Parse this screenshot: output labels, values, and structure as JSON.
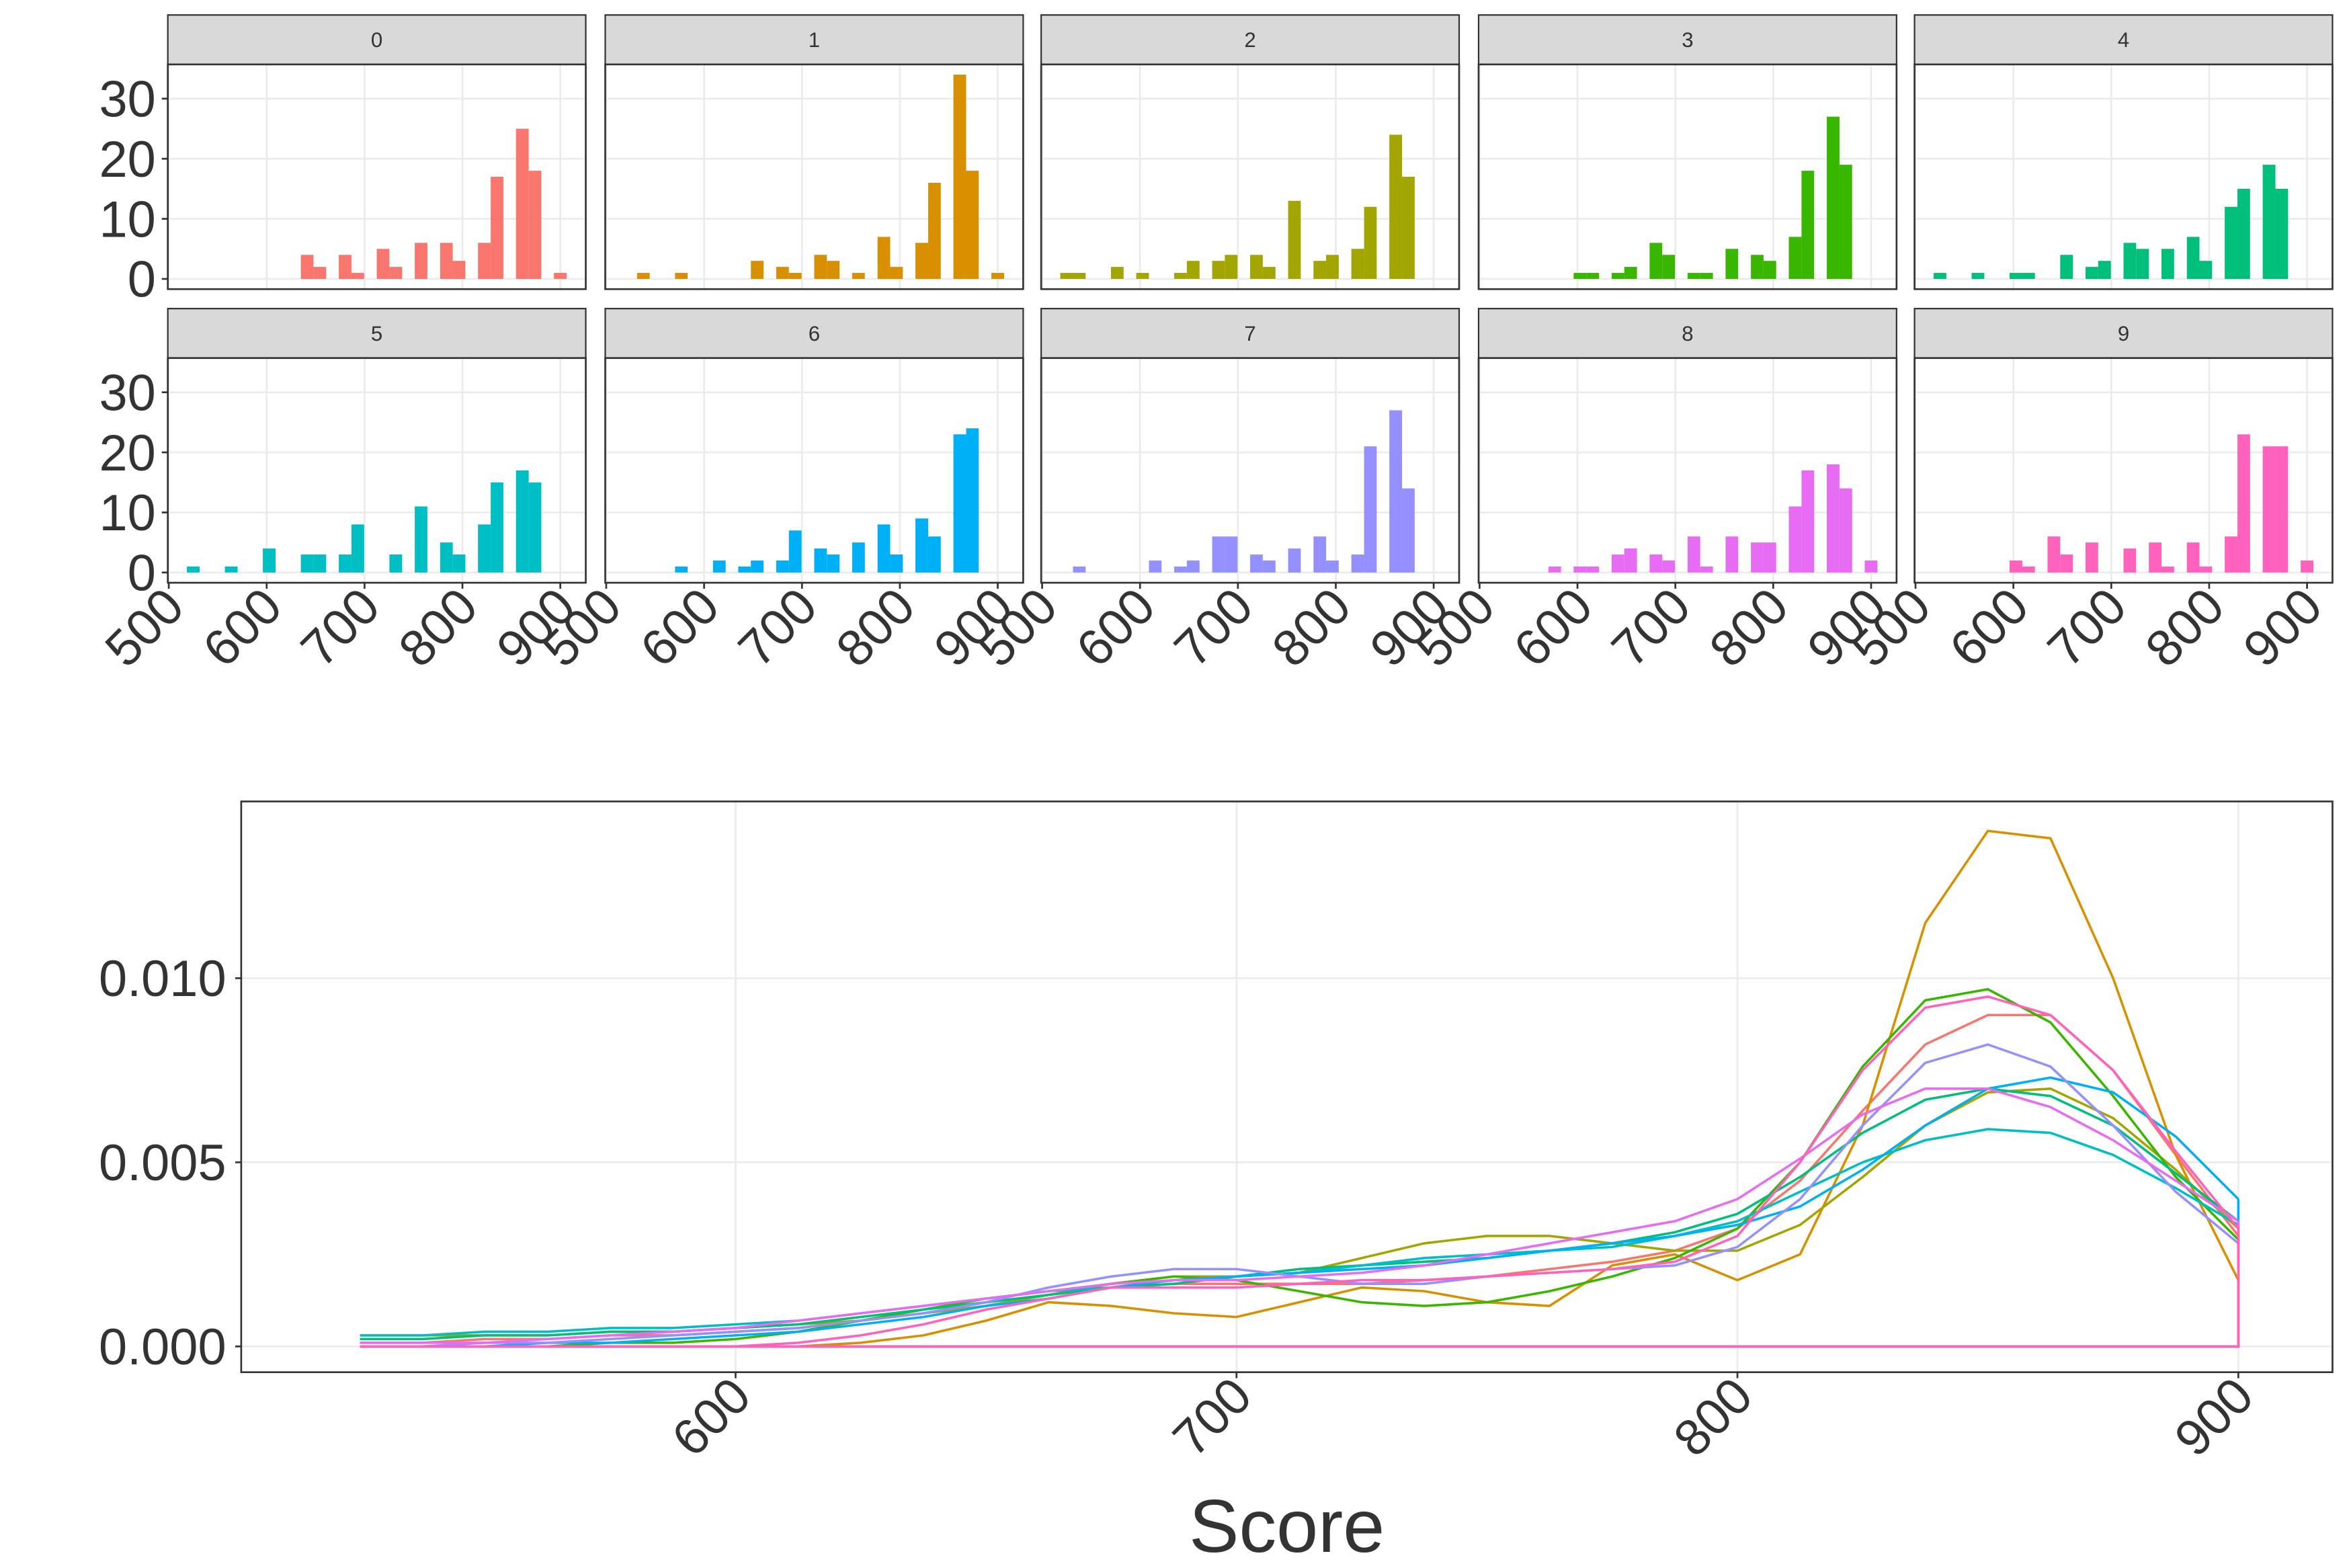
{
  "chart_data": [
    {
      "type": "histogram",
      "bins": [
        518.5,
        531.5,
        544.4,
        557.3,
        570.3,
        583.2,
        596.1,
        609.1,
        622.0,
        634.9,
        647.8,
        660.8,
        673.7,
        686.6,
        699.6,
        712.5,
        725.4,
        738.4,
        751.3,
        764.2,
        777.2,
        790.1,
        803.0,
        815.9,
        828.9,
        841.8,
        854.7,
        867.7,
        880.6,
        893.5,
        906.5
      ],
      "panels": [
        {
          "label": "0",
          "color": "#F8766D",
          "values": [
            0,
            0,
            0,
            0,
            0,
            0,
            0,
            0,
            0,
            4,
            2,
            0,
            4,
            1,
            0,
            5,
            2,
            0,
            6,
            0,
            6,
            3,
            0,
            6,
            17,
            0,
            25,
            18,
            0,
            1
          ]
        },
        {
          "label": "1",
          "color": "#D89000",
          "values": [
            0,
            1,
            0,
            0,
            1,
            0,
            0,
            0,
            0,
            0,
            3,
            0,
            2,
            1,
            0,
            4,
            3,
            0,
            1,
            0,
            7,
            2,
            0,
            6,
            16,
            0,
            34,
            18,
            0,
            1
          ]
        },
        {
          "label": "2",
          "color": "#A3A500",
          "values": [
            1,
            1,
            0,
            0,
            2,
            0,
            1,
            0,
            0,
            1,
            3,
            0,
            3,
            4,
            0,
            4,
            2,
            0,
            13,
            0,
            3,
            4,
            0,
            5,
            12,
            0,
            24,
            17,
            0,
            0
          ]
        },
        {
          "label": "3",
          "color": "#39B600",
          "values": [
            0,
            0,
            0,
            0,
            0,
            0,
            1,
            1,
            0,
            1,
            2,
            0,
            6,
            4,
            0,
            1,
            1,
            0,
            5,
            0,
            4,
            3,
            0,
            7,
            18,
            0,
            27,
            19,
            0,
            0
          ]
        },
        {
          "label": "4",
          "color": "#00BF7D",
          "values": [
            1,
            0,
            0,
            1,
            0,
            0,
            1,
            1,
            0,
            0,
            4,
            0,
            2,
            3,
            0,
            6,
            5,
            0,
            5,
            0,
            7,
            3,
            0,
            12,
            15,
            0,
            19,
            15,
            0,
            0
          ]
        },
        {
          "label": "5",
          "color": "#00BFC4",
          "values": [
            1,
            0,
            0,
            1,
            0,
            0,
            4,
            0,
            0,
            3,
            3,
            0,
            3,
            8,
            0,
            0,
            3,
            0,
            11,
            0,
            5,
            3,
            0,
            8,
            15,
            0,
            17,
            15,
            0,
            0
          ]
        },
        {
          "label": "6",
          "color": "#00B0F6",
          "values": [
            0,
            0,
            0,
            0,
            1,
            0,
            0,
            2,
            0,
            1,
            2,
            0,
            2,
            7,
            0,
            4,
            3,
            0,
            5,
            0,
            8,
            3,
            0,
            9,
            6,
            0,
            23,
            24,
            0,
            0
          ]
        },
        {
          "label": "7",
          "color": "#9590FF",
          "values": [
            0,
            1,
            0,
            0,
            0,
            0,
            0,
            2,
            0,
            1,
            2,
            0,
            6,
            6,
            0,
            3,
            2,
            0,
            4,
            0,
            6,
            2,
            0,
            3,
            21,
            0,
            27,
            14,
            0,
            0
          ]
        },
        {
          "label": "8",
          "color": "#E76BF3",
          "values": [
            0,
            0,
            0,
            0,
            1,
            0,
            1,
            1,
            0,
            3,
            4,
            0,
            3,
            2,
            0,
            6,
            1,
            0,
            6,
            0,
            5,
            5,
            0,
            11,
            17,
            0,
            18,
            14,
            0,
            2
          ]
        },
        {
          "label": "9",
          "color": "#FF62BC",
          "values": [
            0,
            0,
            0,
            0,
            0,
            0,
            2,
            1,
            0,
            6,
            3,
            0,
            5,
            0,
            0,
            4,
            0,
            5,
            1,
            0,
            5,
            1,
            0,
            6,
            23,
            0,
            21,
            21,
            0,
            2
          ]
        }
      ],
      "xlim": [
        499,
        926
      ],
      "ylim": [
        -1.7,
        35.7
      ],
      "xticks": [
        500,
        600,
        700,
        800,
        900
      ],
      "yticks": [
        0,
        10,
        20,
        30
      ],
      "grid": true
    },
    {
      "type": "density",
      "x": [
        525,
        537.5,
        550,
        562.5,
        575,
        587.5,
        600,
        612.5,
        625,
        637.5,
        650,
        662.5,
        675,
        687.5,
        700,
        712.5,
        725,
        737.5,
        750,
        762.5,
        775,
        787.5,
        800,
        812.5,
        825,
        837.5,
        850,
        862.5,
        875,
        887.5,
        900
      ],
      "series": [
        {
          "color": "#F8766D",
          "values": [
            0.0001,
            0.0001,
            0.0002,
            0.0002,
            0.0003,
            0.0003,
            0.0004,
            0.0005,
            0.0007,
            0.0009,
            0.0012,
            0.0014,
            0.0016,
            0.0017,
            0.0017,
            0.0017,
            0.0017,
            0.0018,
            0.0019,
            0.0021,
            0.0023,
            0.0026,
            0.0032,
            0.0045,
            0.0064,
            0.0082,
            0.009,
            0.009,
            0.0075,
            0.0052,
            0.003
          ]
        },
        {
          "color": "#D89000",
          "values": [
            0,
            0,
            0,
            0,
            0,
            0,
            0,
            0,
            0.0001,
            0.0003,
            0.0007,
            0.0012,
            0.0011,
            0.0009,
            0.0008,
            0.0012,
            0.0016,
            0.0015,
            0.0012,
            0.0011,
            0.0022,
            0.0025,
            0.0018,
            0.0025,
            0.006,
            0.0115,
            0.014,
            0.0138,
            0.01,
            0.0052,
            0.0018
          ]
        },
        {
          "color": "#A3A500",
          "values": [
            0.0003,
            0.0003,
            0.0003,
            0.0003,
            0.0004,
            0.0004,
            0.0005,
            0.0006,
            0.0007,
            0.0009,
            0.0011,
            0.0014,
            0.0017,
            0.0019,
            0.0019,
            0.002,
            0.0024,
            0.0028,
            0.003,
            0.003,
            0.0028,
            0.0026,
            0.0026,
            0.0033,
            0.0046,
            0.006,
            0.0069,
            0.007,
            0.0062,
            0.0048,
            0.0032
          ]
        },
        {
          "color": "#39B600",
          "values": [
            0,
            0,
            0,
            0,
            0.0001,
            0.0001,
            0.0002,
            0.0004,
            0.0007,
            0.001,
            0.0013,
            0.0015,
            0.0017,
            0.0019,
            0.0018,
            0.0015,
            0.0012,
            0.0011,
            0.0012,
            0.0015,
            0.0019,
            0.0024,
            0.0032,
            0.005,
            0.0076,
            0.0094,
            0.0097,
            0.0088,
            0.0068,
            0.0046,
            0.0029
          ]
        },
        {
          "color": "#00BF7D",
          "values": [
            0.0002,
            0.0002,
            0.0003,
            0.0003,
            0.0004,
            0.0004,
            0.0005,
            0.0006,
            0.0008,
            0.001,
            0.0012,
            0.0014,
            0.0016,
            0.0017,
            0.0019,
            0.0021,
            0.0022,
            0.0023,
            0.0024,
            0.0026,
            0.0028,
            0.0031,
            0.0036,
            0.0046,
            0.0058,
            0.0067,
            0.007,
            0.0068,
            0.006,
            0.0047,
            0.0034
          ]
        },
        {
          "color": "#00BFC4",
          "values": [
            0.0003,
            0.0003,
            0.0004,
            0.0004,
            0.0005,
            0.0005,
            0.0006,
            0.0007,
            0.0009,
            0.0011,
            0.0013,
            0.0015,
            0.0016,
            0.0018,
            0.0019,
            0.002,
            0.0022,
            0.0024,
            0.0025,
            0.0026,
            0.0027,
            0.003,
            0.0034,
            0.0042,
            0.005,
            0.0056,
            0.0059,
            0.0058,
            0.0052,
            0.0043,
            0.0033
          ]
        },
        {
          "color": "#00B0F6",
          "values": [
            0,
            0,
            0,
            0.0001,
            0.0001,
            0.0002,
            0.0003,
            0.0004,
            0.0006,
            0.0008,
            0.0011,
            0.0013,
            0.0016,
            0.0018,
            0.0019,
            0.002,
            0.0021,
            0.0022,
            0.0024,
            0.0026,
            0.0028,
            0.003,
            0.0033,
            0.0038,
            0.0048,
            0.006,
            0.007,
            0.0073,
            0.0069,
            0.0057,
            0.004
          ]
        },
        {
          "color": "#9590FF",
          "values": [
            0,
            0,
            0.0001,
            0.0001,
            0.0002,
            0.0003,
            0.0004,
            0.0005,
            0.0007,
            0.0009,
            0.0012,
            0.0016,
            0.0019,
            0.0021,
            0.0021,
            0.0019,
            0.0017,
            0.0017,
            0.0019,
            0.002,
            0.0021,
            0.0022,
            0.0027,
            0.004,
            0.006,
            0.0077,
            0.0082,
            0.0076,
            0.006,
            0.0042,
            0.0028
          ]
        },
        {
          "color": "#E76BF3",
          "values": [
            0.0001,
            0.0001,
            0.0001,
            0.0002,
            0.0003,
            0.0004,
            0.0005,
            0.0007,
            0.0009,
            0.0011,
            0.0013,
            0.0015,
            0.0017,
            0.0018,
            0.0018,
            0.0019,
            0.002,
            0.0022,
            0.0025,
            0.0028,
            0.0031,
            0.0034,
            0.004,
            0.0051,
            0.0063,
            0.007,
            0.007,
            0.0065,
            0.0056,
            0.0045,
            0.0034
          ]
        },
        {
          "color": "#FF62BC",
          "values": [
            0,
            0,
            0,
            0,
            0,
            0,
            0,
            0.0001,
            0.0003,
            0.0006,
            0.001,
            0.0013,
            0.0016,
            0.0016,
            0.0016,
            0.0017,
            0.0018,
            0.0018,
            0.0019,
            0.002,
            0.0021,
            0.0023,
            0.003,
            0.005,
            0.0075,
            0.0092,
            0.0095,
            0.009,
            0.0075,
            0.0053,
            0.0032
          ]
        }
      ],
      "xlim": [
        501.3,
        918.8
      ],
      "ylim": [
        -0.0007,
        0.0148
      ],
      "xticks": [
        600,
        700,
        800,
        900
      ],
      "yticks": [
        {
          "value": 0,
          "label": "0.000"
        },
        {
          "value": 0.005,
          "label": "0.005"
        },
        {
          "value": 0.01,
          "label": "0.010"
        }
      ],
      "x_label": "Score",
      "grid": true
    }
  ]
}
